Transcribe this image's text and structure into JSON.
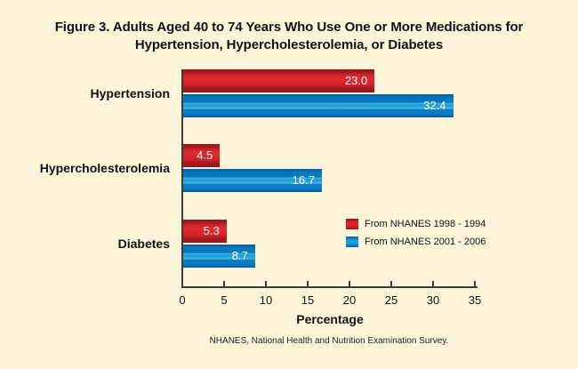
{
  "figure": {
    "background_color": "#FCF5D9",
    "title_line1": "Figure 3. Adults Aged 40 to 74 Years Who Use One or More Medications for",
    "title_line2": "Hypertension, Hypercholesterolemia, or Diabetes",
    "footnote": "NHANES, National Health and Nutrition Examination Survey."
  },
  "chart_data": {
    "type": "bar",
    "orientation": "horizontal",
    "title": "Figure 3. Adults Aged 40 to 74 Years Who Use One or More Medications for Hypertension, Hypercholesterolemia, or Diabetes",
    "categories": [
      "Hypertension",
      "Hypercholesterolemia",
      "Diabetes"
    ],
    "series": [
      {
        "name": "From NHANES 1998 - 1994",
        "color": "#D2232A",
        "values": [
          23.0,
          4.5,
          5.3
        ]
      },
      {
        "name": "From NHANES 2001 - 2006",
        "color": "#1790CE",
        "values": [
          32.4,
          16.7,
          8.7
        ]
      }
    ],
    "data_labels_shown": true,
    "data_label_color": "#FFFFFF",
    "xlabel": "Percentage",
    "xlim": [
      0,
      35
    ],
    "xticks": [
      0,
      5,
      10,
      15,
      20,
      25,
      30,
      35
    ],
    "grid": false,
    "legend_position": "inside-lower-right",
    "axis_color": "#3C3C33"
  }
}
